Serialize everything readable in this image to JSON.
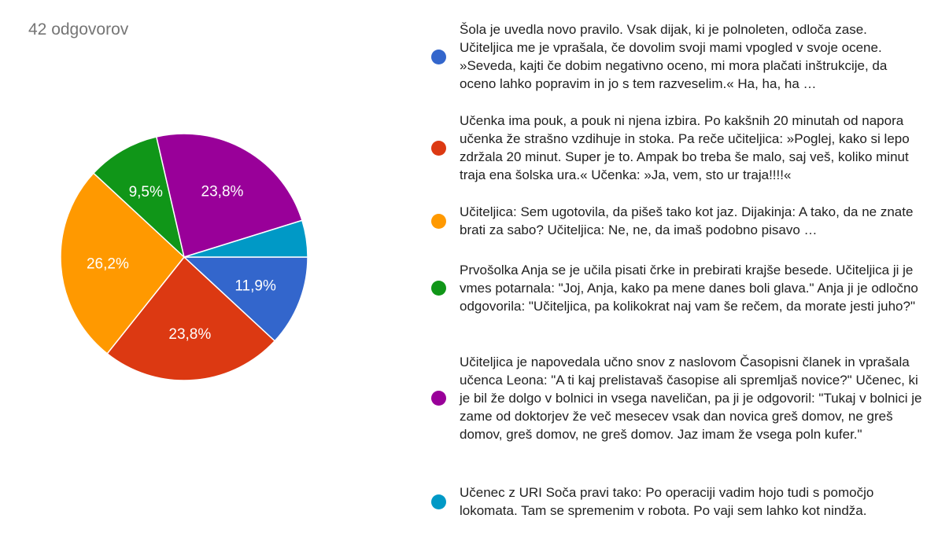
{
  "response_count": "42 odgovorov",
  "chart_data": {
    "type": "pie",
    "slices": [
      {
        "label": "Šola je uvedla novo pravilo. Vsak dijak, ki je polnoleten, odloča zase. Učiteljica me je vprašala, če dovolim svoji mami vpogled v svoje ocene. »Seveda, kajti če dobim negativno oceno, mi mora plačati inštrukcije, da oceno lahko popravim in jo s tem razveselim.« Ha, ha, ha …",
        "value": 11.9,
        "display": "11,9%",
        "color": "#3366cc"
      },
      {
        "label": "Učenka ima pouk, a pouk ni njena izbira. Po kakšnih 20 minutah od napora učenka že strašno vzdihuje in stoka. Pa reče učiteljica: »Poglej, kako si lepo zdržala 20 minut. Super je to. Ampak bo treba še malo, saj veš, koliko minut traja ena šolska ura.« Učenka: »Ja, vem, sto ur traja!!!!«",
        "value": 23.8,
        "display": "23,8%",
        "color": "#dc3912"
      },
      {
        "label": "Učiteljica: Sem ugotovila, da pišeš tako kot jaz. Dijakinja: A tako, da ne znate brati za sabo? Učiteljica: Ne, ne, da imaš podobno pisavo …",
        "value": 26.2,
        "display": "26,2%",
        "color": "#ff9900"
      },
      {
        "label": "Prvošolka Anja se je učila pisati črke in prebirati krajše besede. Učiteljica ji je vmes potarnala: \"Joj, Anja, kako pa mene danes boli glava.\" Anja ji je odločno odgovorila: \"Učiteljica, pa kolikokrat naj vam še rečem, da morate jesti juho?\"",
        "value": 9.5,
        "display": "9,5%",
        "color": "#109618"
      },
      {
        "label": "Učiteljica je napovedala učno snov z naslovom Časopisni članek in vprašala učenca Leona: \"A ti kaj prelistavaš časopise ali spremljaš novice?\" Učenec, ki je bil že dolgo v bolnici in vsega naveličan, pa ji je odgovoril: \"Tukaj v bolnici je zame od doktorjev že več mesecev vsak dan novica greš domov, ne greš domov, greš domov, ne greš domov. Jaz imam že vsega poln kufer.\"",
        "value": 23.8,
        "display": "23,8%",
        "color": "#990099"
      },
      {
        "label": "Učenec z URI Soča pravi tako: Po operaciji vadim hojo tudi s pomočjo lokomata. Tam se spremenim v robota. Po vaji sem lahko kot nindža.",
        "value": 4.8,
        "display": "",
        "color": "#0099c6"
      }
    ]
  }
}
